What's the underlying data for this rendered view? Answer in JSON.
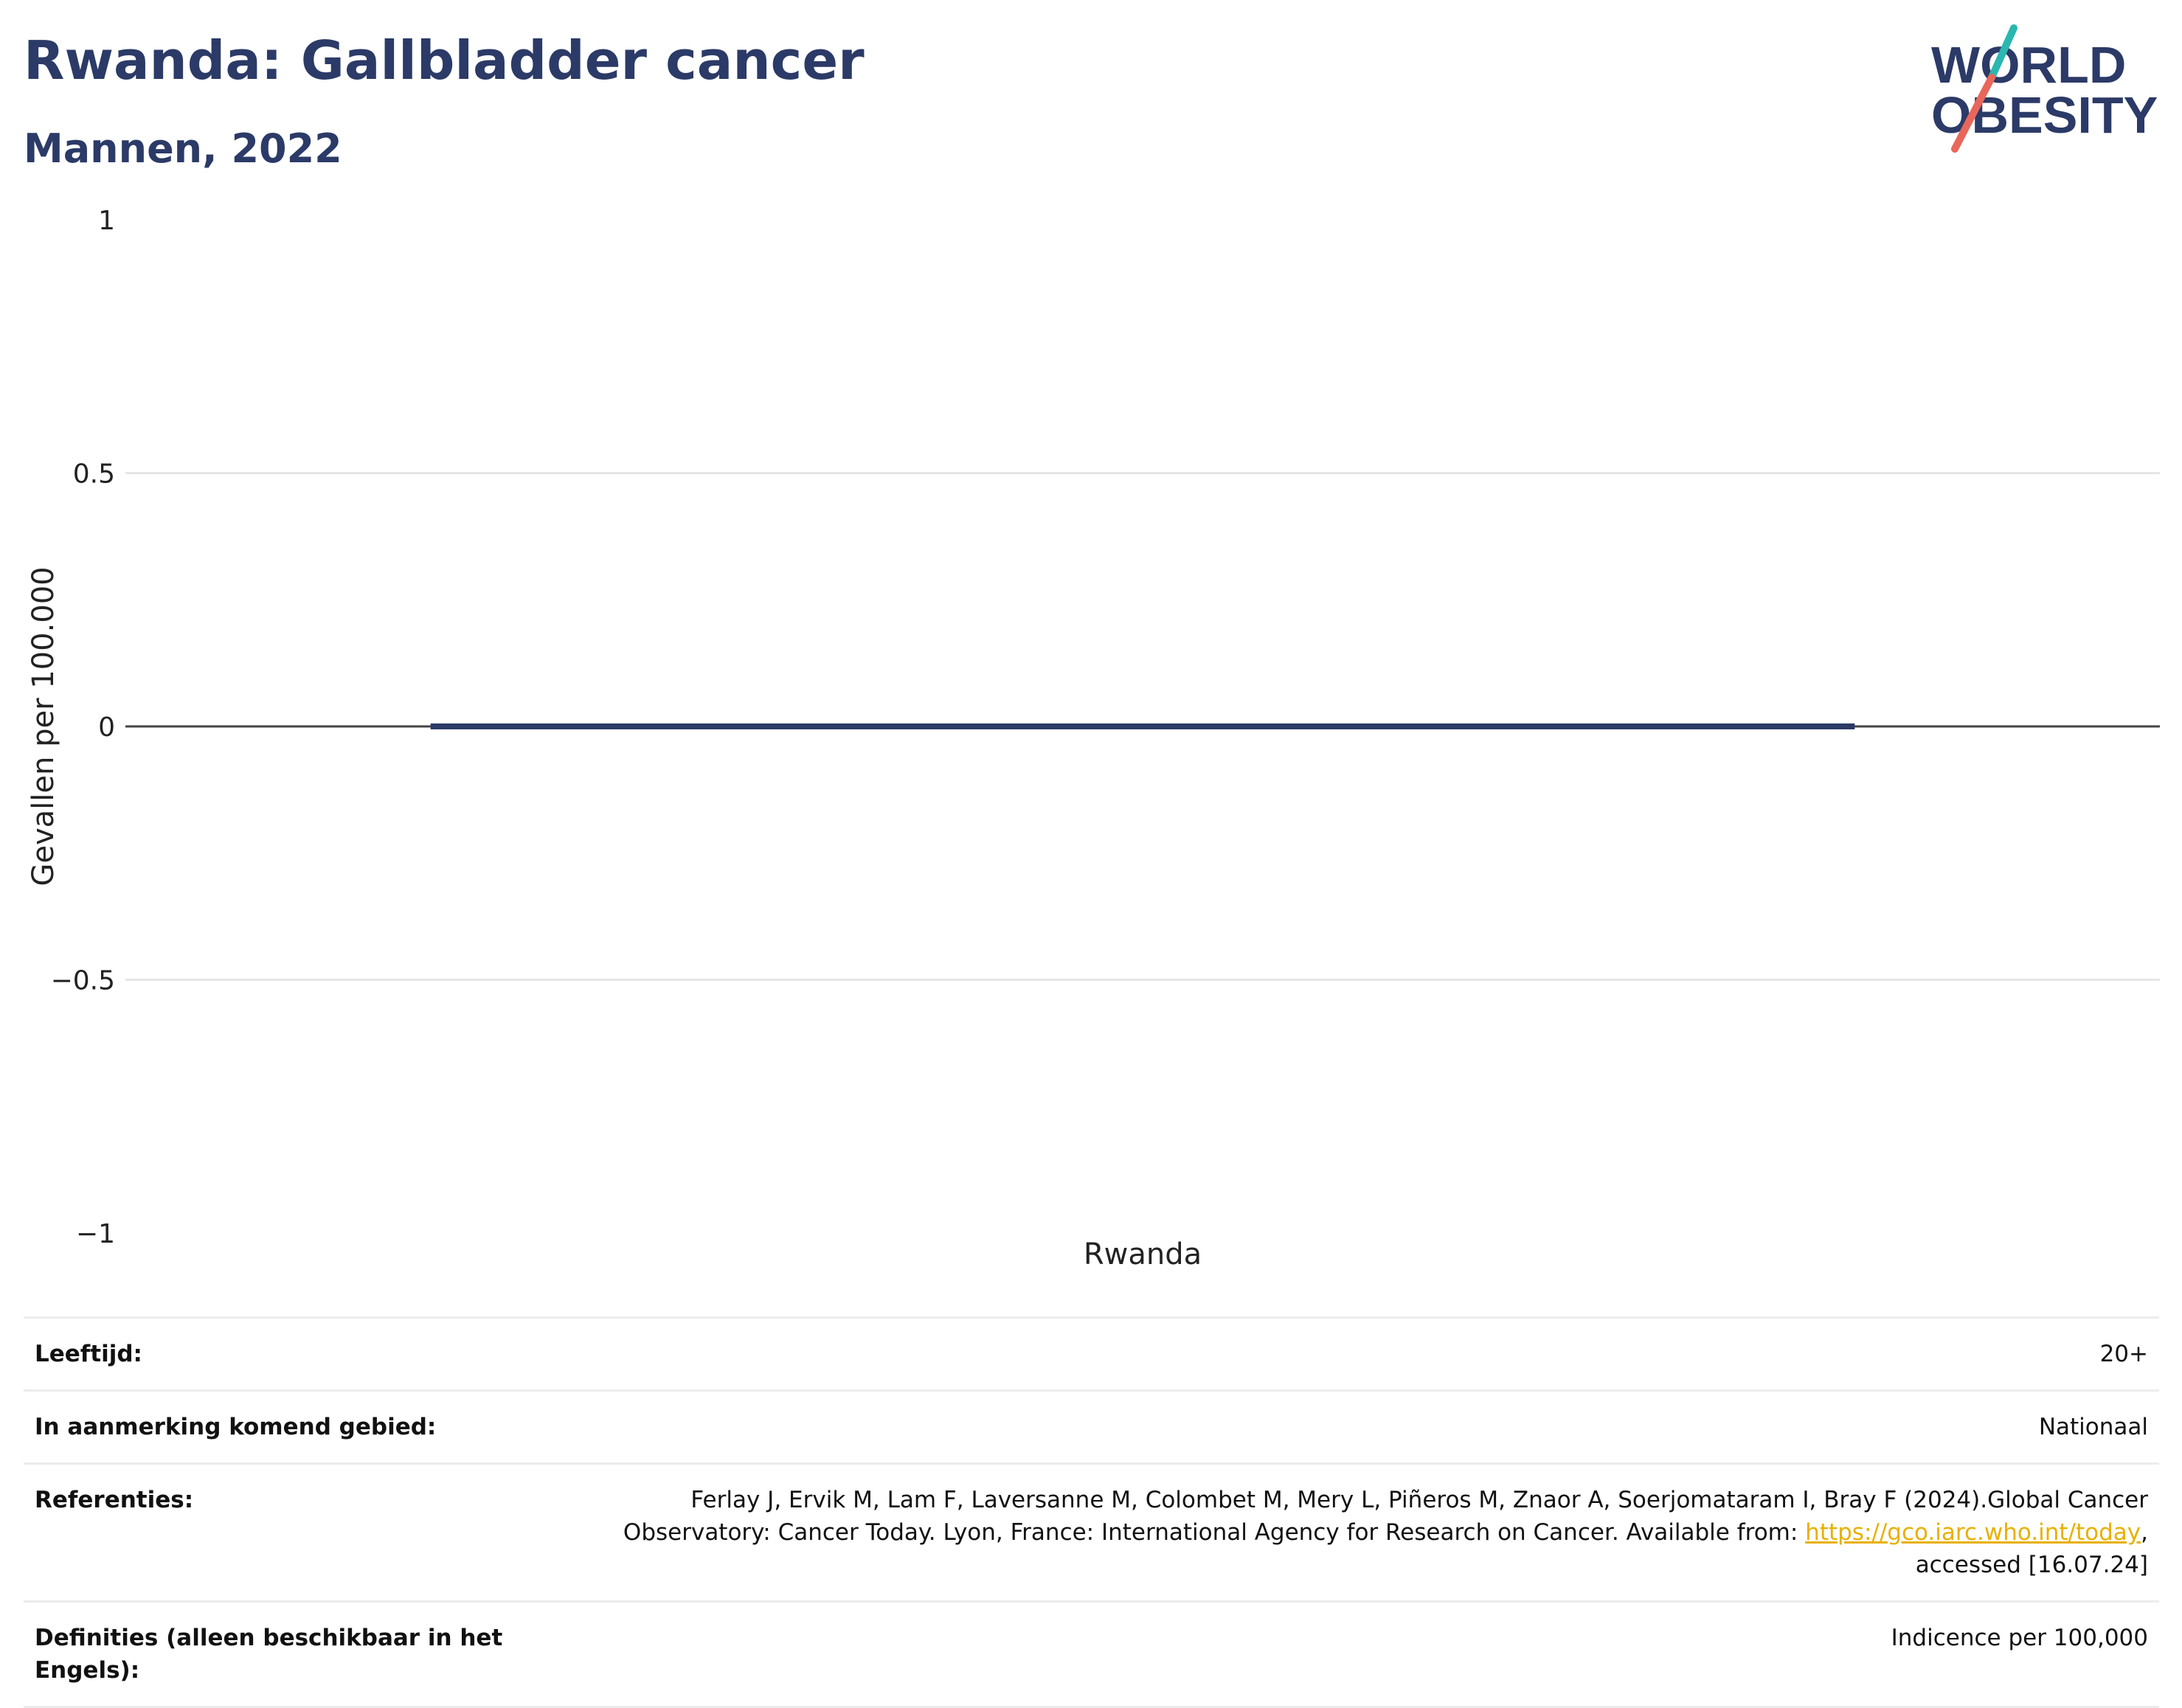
{
  "header": {
    "title": "Rwanda: Gallbladder cancer",
    "subtitle": "Mannen, 2022"
  },
  "logo": {
    "line1": "WORLD",
    "line2": "OBESITY",
    "text_color": "#2b3a67",
    "slash_top_color": "#2ab7b0",
    "slash_bottom_color": "#e8675a"
  },
  "chart_data": {
    "type": "bar",
    "categories": [
      "Rwanda"
    ],
    "series": [
      {
        "values": [
          0
        ]
      }
    ],
    "ylabel": "Gevallen per 100.000",
    "ylim": [
      -1,
      1
    ],
    "yticks": [
      1,
      0.5,
      0,
      -0.5,
      -1
    ],
    "ytick_labels": [
      "1",
      "0.5",
      "0",
      "−0.5",
      "−1"
    ],
    "grid": true,
    "bar_color": "#2b3a67"
  },
  "info": {
    "rows": [
      {
        "label": "Leeftijd:",
        "value": "20+"
      },
      {
        "label": "In aanmerking komend gebied:",
        "value": "Nationaal"
      },
      {
        "label": "Referenties:",
        "value_pre": "Ferlay J, Ervik M, Lam F, Laversanne M, Colombet M, Mery L, Piñeros M, Znaor A, Soerjomataram I, Bray F (2024).Global Cancer Observatory: Cancer Today. Lyon, France: International Agency for Research on Cancer. Available from: ",
        "link": "https://gco.iarc.who.int/today",
        "value_post": ", accessed [16.07.24]"
      },
      {
        "label": "Definities (alleen beschikbaar in het Engels):",
        "value": "Indicence per 100,000"
      }
    ]
  }
}
